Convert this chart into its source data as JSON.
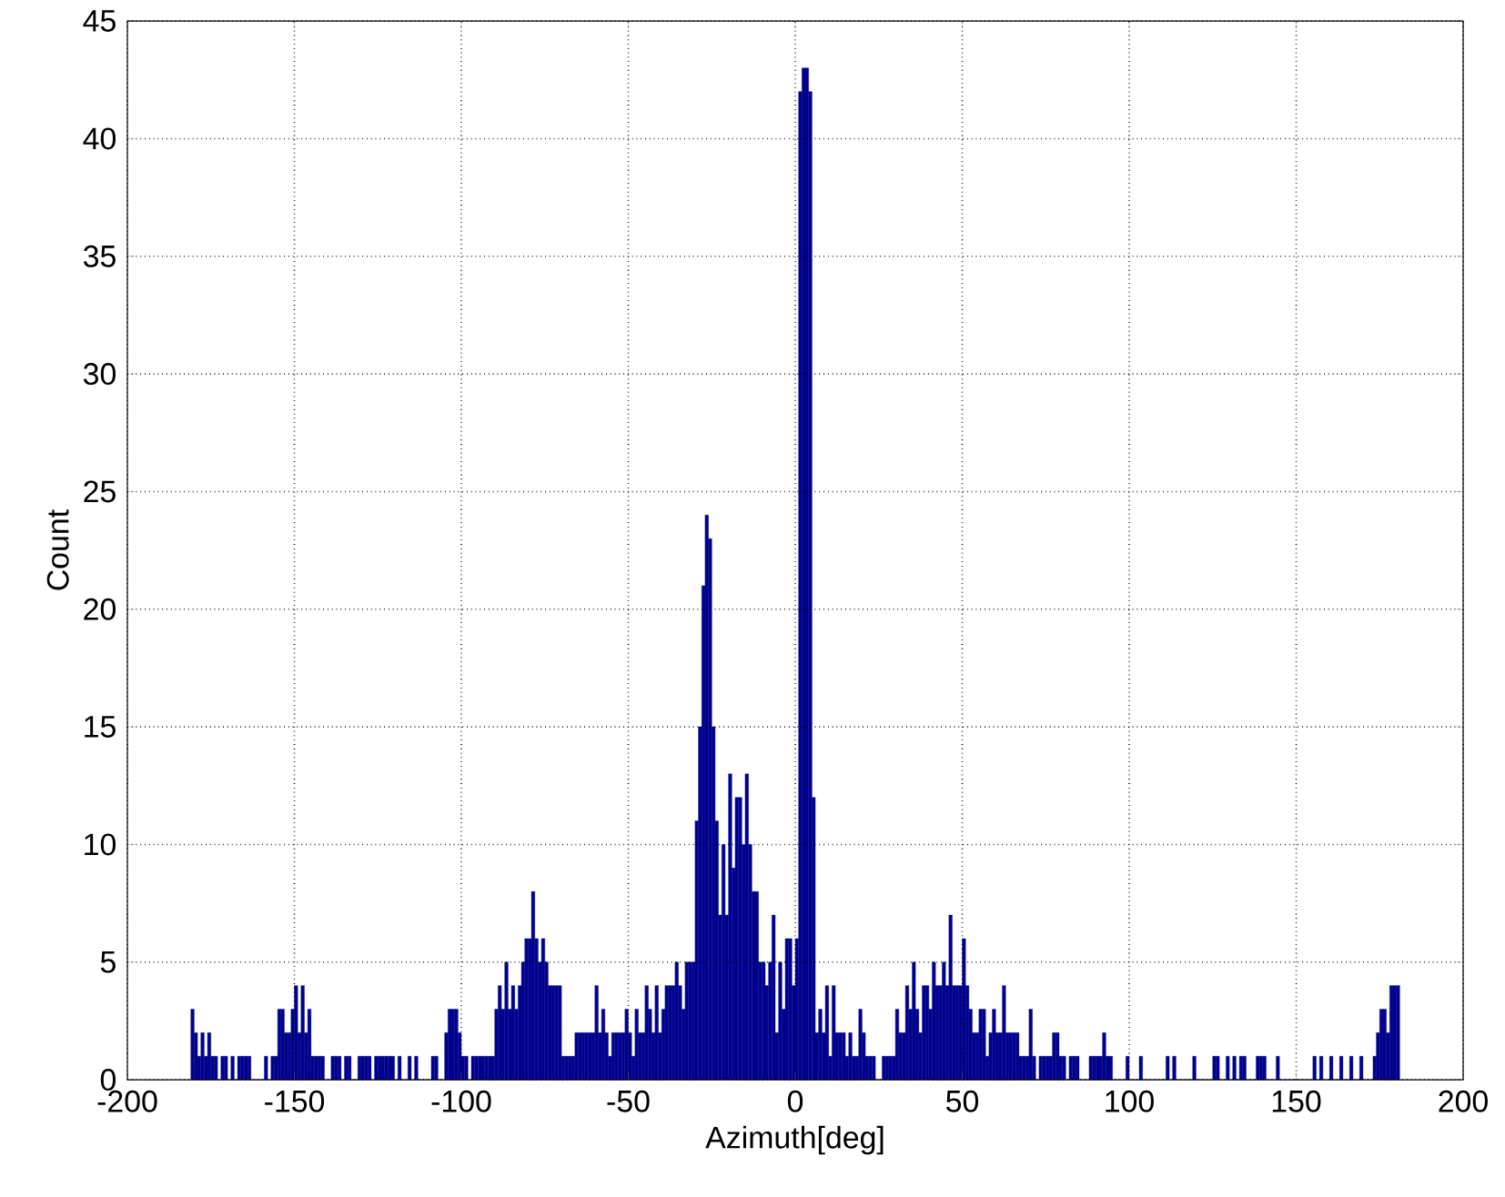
{
  "chart_data": {
    "type": "histogram",
    "xlabel": "Azimuth[deg]",
    "ylabel": "Count",
    "color": "#00008f",
    "bins": [
      -181,
      -180,
      -179,
      -178,
      -177,
      -176,
      -175,
      -174,
      -173,
      -172,
      -171,
      -170,
      -169,
      -168,
      -167,
      -166,
      -165,
      -164,
      -163,
      -162,
      -161,
      -160,
      -159,
      -158,
      -157,
      -156,
      -155,
      -154,
      -153,
      -152,
      -151,
      -150,
      -149,
      -148,
      -147,
      -146,
      -145,
      -144,
      -143,
      -142,
      -141,
      -140,
      -139,
      -138,
      -137,
      -136,
      -135,
      -134,
      -133,
      -132,
      -131,
      -130,
      -129,
      -128,
      -127,
      -126,
      -125,
      -124,
      -123,
      -122,
      -121,
      -120,
      -119,
      -118,
      -117,
      -116,
      -115,
      -114,
      -113,
      -112,
      -111,
      -110,
      -109,
      -108,
      -107,
      -106,
      -105,
      -104,
      -103,
      -102,
      -101,
      -100,
      -99,
      -98,
      -97,
      -96,
      -95,
      -94,
      -93,
      -92,
      -91,
      -90,
      -89,
      -88,
      -87,
      -86,
      -85,
      -84,
      -83,
      -82,
      -81,
      -80,
      -79,
      -78,
      -77,
      -76,
      -75,
      -74,
      -73,
      -72,
      -71,
      -70,
      -69,
      -68,
      -67,
      -66,
      -65,
      -64,
      -63,
      -62,
      -61,
      -60,
      -59,
      -58,
      -57,
      -56,
      -55,
      -54,
      -53,
      -52,
      -51,
      -50,
      -49,
      -48,
      -47,
      -46,
      -45,
      -44,
      -43,
      -42,
      -41,
      -40,
      -39,
      -38,
      -37,
      -36,
      -35,
      -34,
      -33,
      -32,
      -31,
      -30,
      -29,
      -28,
      -27,
      -26,
      -25,
      -24,
      -23,
      -22,
      -21,
      -20,
      -19,
      -18,
      -17,
      -16,
      -15,
      -14,
      -13,
      -12,
      -11,
      -10,
      -9,
      -8,
      -7,
      -6,
      -5,
      -4,
      -3,
      -2,
      -1,
      0,
      1,
      2,
      3,
      4,
      5,
      6,
      7,
      8,
      9,
      10,
      11,
      12,
      13,
      14,
      15,
      16,
      17,
      18,
      19,
      20,
      21,
      22,
      23,
      24,
      25,
      26,
      27,
      28,
      29,
      30,
      31,
      32,
      33,
      34,
      35,
      36,
      37,
      38,
      39,
      40,
      41,
      42,
      43,
      44,
      45,
      46,
      47,
      48,
      49,
      50,
      51,
      52,
      53,
      54,
      55,
      56,
      57,
      58,
      59,
      60,
      61,
      62,
      63,
      64,
      65,
      66,
      67,
      68,
      69,
      70,
      71,
      72,
      73,
      74,
      75,
      76,
      77,
      78,
      79,
      80,
      81,
      82,
      83,
      84,
      85,
      86,
      87,
      88,
      89,
      90,
      91,
      92,
      93,
      94,
      95,
      96,
      97,
      98,
      99,
      100,
      101,
      102,
      103,
      104,
      105,
      106,
      107,
      108,
      109,
      110,
      111,
      112,
      113,
      114,
      115,
      116,
      117,
      118,
      119,
      120,
      121,
      122,
      123,
      124,
      125,
      126,
      127,
      128,
      129,
      130,
      131,
      132,
      133,
      134,
      135,
      136,
      137,
      138,
      139,
      140,
      141,
      142,
      143,
      144,
      145,
      146,
      147,
      148,
      149,
      150,
      151,
      152,
      153,
      154,
      155,
      156,
      157,
      158,
      159,
      160,
      161,
      162,
      163,
      164,
      165,
      166,
      167,
      168,
      169,
      170,
      171,
      172,
      173,
      174,
      175,
      176,
      177,
      178,
      179,
      180,
      181
    ],
    "values": [
      3,
      2,
      1,
      2,
      1,
      2,
      1,
      1,
      0,
      1,
      1,
      0,
      1,
      0,
      1,
      1,
      1,
      1,
      0,
      0,
      0,
      0,
      1,
      0,
      1,
      1,
      3,
      3,
      2,
      2,
      3,
      4,
      2,
      4,
      2,
      3,
      1,
      1,
      1,
      1,
      0,
      0,
      1,
      1,
      1,
      0,
      1,
      1,
      0,
      0,
      1,
      1,
      1,
      1,
      0,
      1,
      1,
      1,
      1,
      1,
      1,
      0,
      1,
      0,
      0,
      1,
      0,
      1,
      0,
      0,
      0,
      0,
      1,
      1,
      0,
      0,
      2,
      3,
      3,
      3,
      2,
      1,
      1,
      0,
      1,
      1,
      1,
      1,
      1,
      1,
      1,
      3,
      4,
      3,
      5,
      3,
      4,
      3,
      4,
      5,
      6,
      6,
      8,
      6,
      5,
      6,
      5,
      4,
      4,
      4,
      4,
      1,
      1,
      1,
      1,
      2,
      2,
      2,
      2,
      2,
      2,
      4,
      2,
      3,
      2,
      1,
      2,
      2,
      2,
      2,
      3,
      2,
      1,
      3,
      2,
      2,
      4,
      3,
      2,
      4,
      2,
      3,
      4,
      4,
      4,
      5,
      4,
      3,
      5,
      5,
      5,
      11,
      15,
      21,
      24,
      23,
      15,
      11,
      7,
      10,
      7,
      13,
      9,
      12,
      12,
      10,
      13,
      10,
      8,
      8,
      5,
      5,
      4,
      5,
      7,
      2,
      5,
      3,
      6,
      6,
      4,
      6,
      42,
      43,
      43,
      42,
      12,
      2,
      3,
      2,
      4,
      1,
      4,
      2,
      2,
      2,
      1,
      2,
      1,
      1,
      3,
      2,
      1,
      1,
      1,
      0,
      0,
      1,
      1,
      1,
      1,
      3,
      2,
      2,
      4,
      3,
      5,
      3,
      2,
      4,
      4,
      3,
      5,
      4,
      4,
      5,
      4,
      7,
      4,
      4,
      4,
      6,
      4,
      3,
      2,
      2,
      3,
      3,
      1,
      2,
      3,
      2,
      2,
      4,
      2,
      2,
      2,
      2,
      1,
      1,
      1,
      3,
      1,
      0,
      1,
      1,
      1,
      1,
      2,
      2,
      1,
      1,
      0,
      1,
      1,
      1,
      0,
      0,
      0,
      1,
      1,
      1,
      1,
      2,
      1,
      1,
      0,
      0,
      0,
      0,
      1,
      0,
      0,
      0,
      1,
      0,
      0,
      0,
      0,
      0,
      0,
      0,
      1,
      0,
      1,
      0,
      0,
      0,
      0,
      0,
      1,
      0,
      0,
      0,
      0,
      0,
      1,
      1,
      0,
      0,
      1,
      0,
      1,
      0,
      1,
      1,
      0,
      0,
      0,
      1,
      1,
      1,
      0,
      0,
      0,
      1,
      0,
      0,
      0,
      0,
      0,
      0,
      0,
      0,
      0,
      0,
      1,
      0,
      1,
      0,
      0,
      1,
      0,
      0,
      1,
      0,
      0,
      1,
      0,
      0,
      1,
      0,
      0,
      0,
      1,
      2,
      3,
      3,
      2,
      4,
      4,
      4
    ],
    "xlim": [
      -200,
      200
    ],
    "ylim": [
      0,
      45
    ],
    "xticks": [
      -200,
      -150,
      -100,
      -50,
      0,
      50,
      100,
      150,
      200
    ],
    "yticks": [
      0,
      5,
      10,
      15,
      20,
      25,
      30,
      35,
      40,
      45
    ],
    "grid": true
  }
}
